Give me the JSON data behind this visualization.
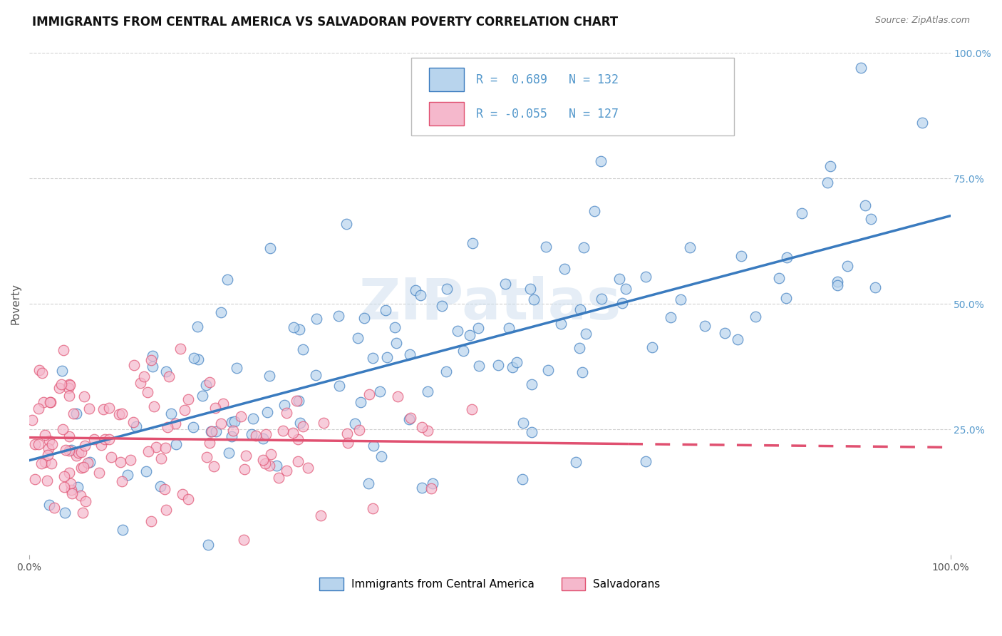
{
  "title": "IMMIGRANTS FROM CENTRAL AMERICA VS SALVADORAN POVERTY CORRELATION CHART",
  "source": "Source: ZipAtlas.com",
  "ylabel": "Poverty",
  "x_tick_labels": [
    "0.0%",
    "100.0%"
  ],
  "y_right_tick_labels": [
    "25.0%",
    "50.0%",
    "75.0%",
    "100.0%"
  ],
  "legend1_label": "R =  0.689   N = 132",
  "legend2_label": "R = -0.055   N = 127",
  "bottom_legend1": "Immigrants from Central America",
  "bottom_legend2": "Salvadorans",
  "scatter_color_blue": "#b8d4ed",
  "scatter_color_pink": "#f5b8cc",
  "line_color_blue": "#3a7bbf",
  "line_color_pink": "#e05070",
  "tick_color_blue": "#5599cc",
  "watermark": "ZIPatlas",
  "background_color": "#ffffff",
  "grid_color": "#cccccc",
  "title_fontsize": 12,
  "axis_label_fontsize": 11,
  "tick_fontsize": 10,
  "legend_fontsize": 12
}
